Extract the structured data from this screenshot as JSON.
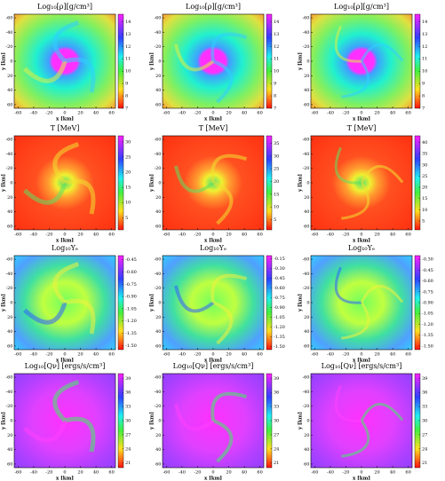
{
  "chart_data": [
    {
      "type": "heatmap",
      "title": "Log₁₀[ρ][g/cm³]",
      "xlabel": "x [km]",
      "ylabel": "y [km]",
      "xlim": [
        -65,
        65
      ],
      "ylim": [
        65,
        -65
      ],
      "xticks": [
        -60,
        -40,
        -20,
        0,
        20,
        40,
        60
      ],
      "yticks": [
        -60,
        -40,
        -20,
        0,
        20,
        40,
        60
      ],
      "clim": [
        7,
        14.6
      ],
      "cticks": [
        14,
        13,
        12,
        11,
        10,
        9,
        8,
        7
      ]
    },
    {
      "type": "heatmap",
      "title": "Log₁₀[ρ][g/cm³]",
      "xlabel": "x [km]",
      "ylabel": "y [km]",
      "xlim": [
        -65,
        65
      ],
      "ylim": [
        65,
        -65
      ],
      "xticks": [
        -60,
        -40,
        -20,
        0,
        20,
        40,
        60
      ],
      "yticks": [
        -60,
        -40,
        -20,
        0,
        20,
        40,
        60
      ],
      "clim": [
        7,
        14.6
      ],
      "cticks": [
        14,
        13,
        12,
        11,
        10,
        9,
        8,
        7
      ]
    },
    {
      "type": "heatmap",
      "title": "Log₁₀[ρ][g/cm³]",
      "xlabel": "x [km]",
      "ylabel": "y [km]",
      "xlim": [
        -65,
        65
      ],
      "ylim": [
        65,
        -65
      ],
      "xticks": [
        -60,
        -40,
        -20,
        0,
        20,
        40,
        60
      ],
      "yticks": [
        -60,
        -40,
        -20,
        0,
        20,
        40,
        60
      ],
      "clim": [
        7,
        14.6
      ],
      "cticks": [
        14,
        13,
        12,
        11,
        10,
        9,
        8,
        7
      ]
    },
    {
      "type": "heatmap",
      "title": "T [MeV]",
      "xlabel": "x [km]",
      "ylabel": "y [km]",
      "xlim": [
        -65,
        65
      ],
      "ylim": [
        65,
        -65
      ],
      "xticks": [
        -60,
        -40,
        -20,
        0,
        20,
        40,
        60
      ],
      "yticks": [
        -60,
        -40,
        -20,
        0,
        20,
        40,
        60
      ],
      "clim": [
        1,
        32
      ],
      "cticks": [
        30,
        25,
        20,
        15,
        10,
        5
      ]
    },
    {
      "type": "heatmap",
      "title": "T [MeV]",
      "xlabel": "x [km]",
      "ylabel": "y [km]",
      "xlim": [
        -65,
        65
      ],
      "ylim": [
        65,
        -65
      ],
      "xticks": [
        -60,
        -40,
        -20,
        0,
        20,
        40,
        60
      ],
      "yticks": [
        -60,
        -40,
        -20,
        0,
        20,
        40,
        60
      ],
      "clim": [
        1,
        38
      ],
      "cticks": [
        35,
        30,
        25,
        20,
        15,
        10,
        5
      ]
    },
    {
      "type": "heatmap",
      "title": "T [MeV]",
      "xlabel": "x [km]",
      "ylabel": "y [km]",
      "xlim": [
        -65,
        65
      ],
      "ylim": [
        65,
        -65
      ],
      "xticks": [
        -60,
        -40,
        -20,
        0,
        20,
        40,
        60
      ],
      "yticks": [
        -60,
        -40,
        -20,
        0,
        20,
        40,
        60
      ],
      "clim": [
        1,
        43
      ],
      "cticks": [
        40,
        35,
        30,
        25,
        20,
        15,
        10,
        5
      ]
    },
    {
      "type": "heatmap",
      "title": "Log₁₀Yₑ",
      "xlabel": "x [km]",
      "ylabel": "y [km]",
      "xlim": [
        -65,
        65
      ],
      "ylim": [
        65,
        -65
      ],
      "xticks": [
        -60,
        -40,
        -20,
        0,
        20,
        40,
        60
      ],
      "yticks": [
        -60,
        -40,
        -20,
        0,
        20,
        40,
        60
      ],
      "clim": [
        -1.55,
        -0.4
      ],
      "cticks": [
        -0.45,
        {
          "value": -0.6,
          "label": "-0.60"
        },
        -0.75,
        {
          "value": -0.9,
          "label": "-0.90"
        },
        -1.05,
        {
          "value": -1.2,
          "label": "-1.20"
        },
        -1.35,
        {
          "value": -1.5,
          "label": "-1.50"
        }
      ]
    },
    {
      "type": "heatmap",
      "title": "Log₁₀Yₑ",
      "xlabel": "x [km]",
      "ylabel": "y [km]",
      "xlim": [
        -65,
        65
      ],
      "ylim": [
        65,
        -65
      ],
      "xticks": [
        -60,
        -40,
        -20,
        0,
        20,
        40,
        60
      ],
      "yticks": [
        -60,
        -40,
        -20,
        0,
        20,
        40,
        60
      ],
      "clim": [
        -1.55,
        -0.1
      ],
      "cticks": [
        -0.15,
        {
          "value": -0.3,
          "label": "-0.30"
        },
        -0.45,
        {
          "value": -0.6,
          "label": "-0.60"
        },
        -0.75,
        {
          "value": -0.9,
          "label": "-0.90"
        },
        -1.05,
        {
          "value": -1.2,
          "label": "-1.20"
        },
        -1.35,
        {
          "value": -1.5,
          "label": "-1.50"
        }
      ]
    },
    {
      "type": "heatmap",
      "title": "Log₁₀Yₑ",
      "xlabel": "x [km]",
      "ylabel": "y [km]",
      "xlim": [
        -65,
        65
      ],
      "ylim": [
        65,
        -65
      ],
      "xticks": [
        -60,
        -40,
        -20,
        0,
        20,
        40,
        60
      ],
      "yticks": [
        -60,
        -40,
        -20,
        0,
        20,
        40,
        60
      ],
      "clim": [
        -1.55,
        -0.25
      ],
      "cticks": [
        {
          "value": -0.3,
          "label": "-0.30"
        },
        -0.45,
        {
          "value": -0.6,
          "label": "-0.60"
        },
        -0.75,
        {
          "value": -0.9,
          "label": "-0.90"
        },
        -1.05,
        {
          "value": -1.2,
          "label": "-1.20"
        },
        -1.35,
        {
          "value": -1.5,
          "label": "-1.50"
        }
      ]
    },
    {
      "type": "heatmap",
      "title": "Log₁₀[Qν] [ergs/s/cm³]",
      "xlabel": "x [km]",
      "ylabel": "y [km]",
      "xlim": [
        -65,
        65
      ],
      "ylim": [
        65,
        -65
      ],
      "xticks": [
        -60,
        -40,
        -20,
        0,
        20,
        40,
        60
      ],
      "yticks": [
        -60,
        -40,
        -20,
        0,
        20,
        40,
        60
      ],
      "clim": [
        20,
        40
      ],
      "cticks": [
        39,
        36,
        33,
        30,
        27,
        24,
        21
      ]
    },
    {
      "type": "heatmap",
      "title": "Log₁₀[Qν] [ergs/s/cm³]",
      "xlabel": "x [km]",
      "ylabel": "y [km]",
      "xlim": [
        -65,
        65
      ],
      "ylim": [
        65,
        -65
      ],
      "xticks": [
        -60,
        -40,
        -20,
        0,
        20,
        40,
        60
      ],
      "yticks": [
        -60,
        -40,
        -20,
        0,
        20,
        40,
        60
      ],
      "clim": [
        20,
        40
      ],
      "cticks": [
        39,
        36,
        33,
        30,
        27,
        24,
        21
      ]
    },
    {
      "type": "heatmap",
      "title": "Log₁₀[Qν] [ergs/s/cm³]",
      "xlabel": "x [km]",
      "ylabel": "y [km]",
      "xlim": [
        -65,
        65
      ],
      "ylim": [
        65,
        -65
      ],
      "xticks": [
        -60,
        -40,
        -20,
        0,
        20,
        40,
        60
      ],
      "yticks": [
        -60,
        -40,
        -20,
        0,
        20,
        40,
        60
      ],
      "clim": [
        20,
        40
      ],
      "cticks": [
        39,
        36,
        33,
        30,
        27,
        24,
        21
      ]
    }
  ]
}
